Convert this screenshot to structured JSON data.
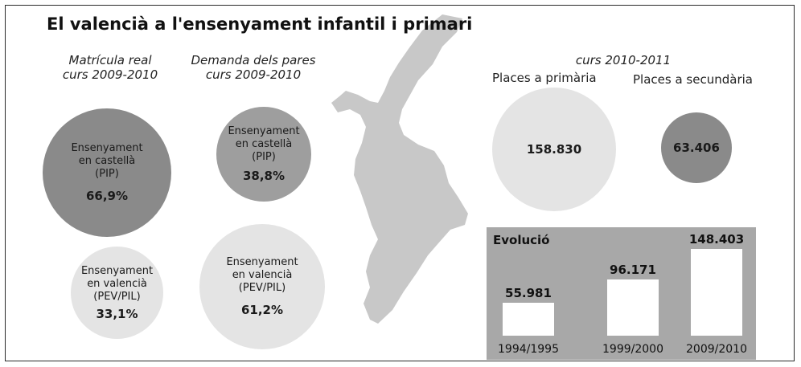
{
  "title": "El valencià a l'ensenyament infantil i primari",
  "left_heading": [
    "Matrícula real",
    "curs 2009-2010"
  ],
  "mid_heading": [
    "Demanda dels pares",
    "curs 2009-2010"
  ],
  "right_heading": "curs 2010-2011",
  "colors": {
    "dark": "#8a8a8a",
    "mid": "#9e9e9e",
    "light": "#e4e4e4",
    "map": "#c8c8c8",
    "panel": "#a8a8a8",
    "bar": "#ffffff"
  },
  "chart_data": [
    {
      "type": "pie",
      "title": "Matrícula real curs 2009-2010",
      "slices": [
        {
          "label": [
            "Ensenyament",
            "en castellà",
            "(PIP)"
          ],
          "value": 66.9,
          "display": "66,9%"
        },
        {
          "label": [
            "Ensenyament",
            "en valencià",
            "(PEV/PIL)"
          ],
          "value": 33.1,
          "display": "33,1%"
        }
      ]
    },
    {
      "type": "pie",
      "title": "Demanda dels pares curs 2009-2010",
      "slices": [
        {
          "label": [
            "Ensenyament",
            "en castellà",
            "(PIP)"
          ],
          "value": 38.8,
          "display": "38,8%"
        },
        {
          "label": [
            "Ensenyament",
            "en valencià",
            "(PEV/PIL)"
          ],
          "value": 61.2,
          "display": "61,2%"
        }
      ]
    },
    {
      "type": "bar",
      "title": "curs 2010-2011",
      "categories": [
        "Places a primària",
        "Places a secundària"
      ],
      "values": [
        158830,
        63406
      ],
      "display": [
        "158.830",
        "63.406"
      ]
    },
    {
      "type": "bar",
      "title": "Evolució",
      "categories": [
        "1994/1995",
        "1999/2000",
        "2009/2010"
      ],
      "values": [
        55981,
        96171,
        148403
      ],
      "display": [
        "55.981",
        "96.171",
        "148.403"
      ]
    }
  ]
}
